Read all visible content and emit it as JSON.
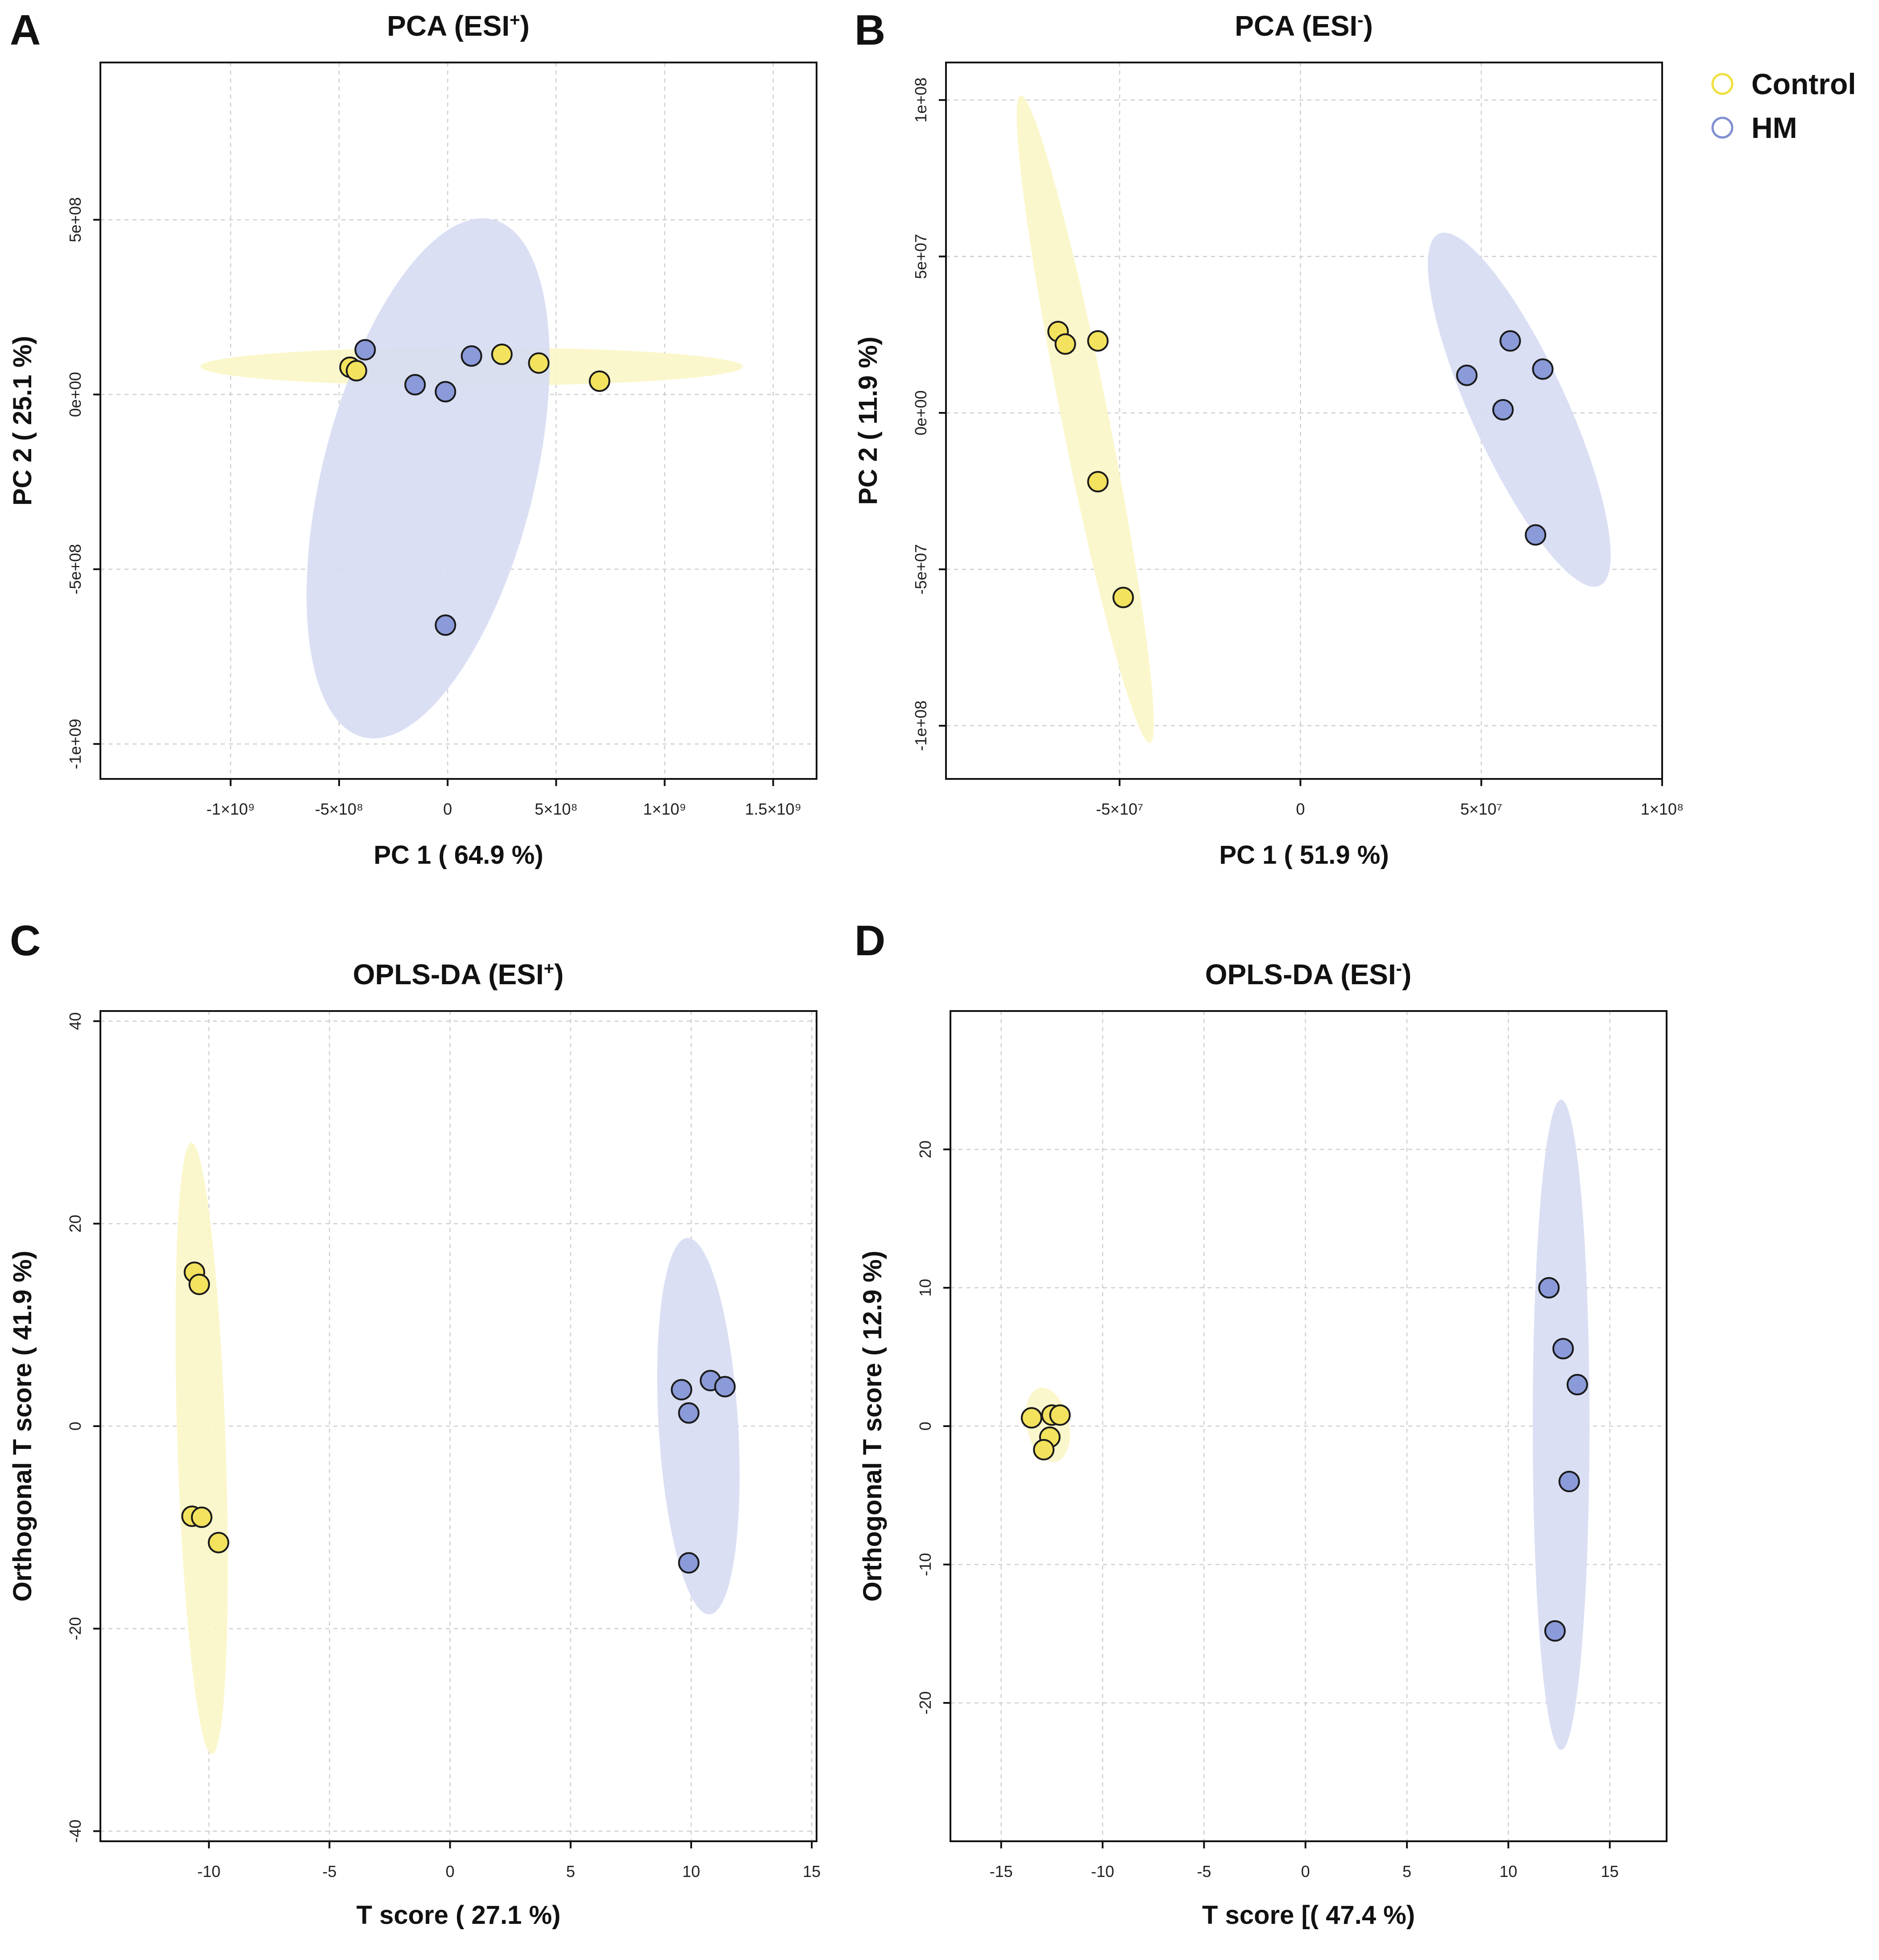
{
  "colors": {
    "Control": "#f2e25e",
    "HM": "#8b9ad8",
    "Control_ellipse": "#fbf6c6",
    "HM_ellipse": "#d6dbf3",
    "legend_Control": "#f0e040",
    "legend_HM": "#8090d0"
  },
  "legend": {
    "items": [
      {
        "name": "Control",
        "label": "Control"
      },
      {
        "name": "HM",
        "label": "HM"
      }
    ]
  },
  "chart_data": [
    {
      "id": "A",
      "letter": "A",
      "type": "scatter",
      "title": "PCA (ESI",
      "title_sup": "+",
      "title_close": ")",
      "xlabel": "PC 1 ( 64.9 %)",
      "ylabel": "PC 2 ( 25.1 %)",
      "xlim": [
        -1600000000.0,
        1700000000.0
      ],
      "ylim": [
        -1100000000.0,
        950000000.0
      ],
      "xticks": [
        {
          "value": -1000000000.0,
          "label": "-1×10⁹"
        },
        {
          "value": -500000000.0,
          "label": "-5×10⁸"
        },
        {
          "value": 0,
          "label": "0"
        },
        {
          "value": 500000000.0,
          "label": "5×10⁸"
        },
        {
          "value": 1000000000.0,
          "label": "1×10⁹"
        },
        {
          "value": 1500000000.0,
          "label": "1.5×10⁹"
        }
      ],
      "yticks": [
        {
          "value": -1000000000.0,
          "label": "-1e+09"
        },
        {
          "value": -500000000.0,
          "label": "-5e+08"
        },
        {
          "value": 0,
          "label": "0e+00"
        },
        {
          "value": 500000000.0,
          "label": "5e+08"
        }
      ],
      "ellipses": [
        {
          "group": "Control",
          "cx": 110000000.0,
          "cy": 80000000.0,
          "rx": 1250000000.0,
          "ry": 55000000.0,
          "rotation": 0
        },
        {
          "group": "HM",
          "cx": -90000000.0,
          "cy": -240000000.0,
          "rx": 460000000.0,
          "ry": 810000000.0,
          "rotation": -0.5
        }
      ],
      "series": [
        {
          "name": "Control",
          "x": [
            -450000000.0,
            -420000000.0,
            250000000.0,
            420000000.0,
            700000000.0
          ],
          "y": [
            78000000.0,
            68000000.0,
            115000000.0,
            90000000.0,
            38000000.0
          ]
        },
        {
          "name": "HM",
          "x": [
            -380000000.0,
            -150000000.0,
            -10000000.0,
            110000000.0,
            -10000000.0
          ],
          "y": [
            128000000.0,
            28000000.0,
            8000000.0,
            110000000.0,
            -660000000.0
          ]
        }
      ]
    },
    {
      "id": "B",
      "letter": "B",
      "type": "scatter",
      "title": "PCA (ESI",
      "title_sup": "-",
      "title_close": ")",
      "xlabel": "PC 1 ( 51.9 %)",
      "ylabel": "PC 2 ( 11.9 %)",
      "xlim": [
        -98000000.0,
        100000000.0
      ],
      "ylim": [
        -117000000.0,
        112000000.0
      ],
      "xticks": [
        {
          "value": -50000000.0,
          "label": "-5×10⁷"
        },
        {
          "value": 0,
          "label": "0"
        },
        {
          "value": 50000000.0,
          "label": "5×10⁷"
        },
        {
          "value": 100000000.0,
          "label": "1×10⁸"
        }
      ],
      "yticks": [
        {
          "value": -100000000.0,
          "label": "-1e+08"
        },
        {
          "value": -50000000.0,
          "label": "-5e+07"
        },
        {
          "value": 0,
          "label": "0e+00"
        },
        {
          "value": 50000000.0,
          "label": "5e+07"
        },
        {
          "value": 100000000.0,
          "label": "1e+08"
        }
      ],
      "ellipses": [
        {
          "group": "Control",
          "cx": -59500000.0,
          "cy": -2000000.0,
          "rx": 105000000.0,
          "ry": 6500000.0,
          "rotation": -1.4
        },
        {
          "group": "HM",
          "cx": 60500000.0,
          "cy": 1000000.0,
          "rx": 60500000.0,
          "ry": 13500000.0,
          "rotation": -1.2
        }
      ],
      "series": [
        {
          "name": "Control",
          "x": [
            -67000000.0,
            -65000000.0,
            -56000000.0,
            -56000000.0,
            -49000000.0
          ],
          "y": [
            26000000.0,
            22000000.0,
            23000000.0,
            -22000000.0,
            -59000000.0
          ]
        },
        {
          "name": "HM",
          "x": [
            46000000.0,
            58000000.0,
            67000000.0,
            56000000.0,
            65000000.0
          ],
          "y": [
            12000000.0,
            23000000.0,
            14000000.0,
            1000000.0,
            -39000000.0
          ]
        }
      ]
    },
    {
      "id": "C",
      "letter": "C",
      "type": "scatter",
      "title": "OPLS-DA (ESI",
      "title_sup": "+",
      "title_close": ")",
      "xlabel": "T score ( 27.1 %)",
      "ylabel": "Orthogonal T score ( 41.9 %)",
      "xlim": [
        -14.5,
        15.2
      ],
      "ylim": [
        -41,
        41
      ],
      "xticks": [
        {
          "value": -10,
          "label": "-10"
        },
        {
          "value": -5,
          "label": "-5"
        },
        {
          "value": 0,
          "label": "0"
        },
        {
          "value": 5,
          "label": "5"
        },
        {
          "value": 10,
          "label": "10"
        },
        {
          "value": 15,
          "label": "15"
        }
      ],
      "yticks": [
        {
          "value": -40,
          "label": "-40"
        },
        {
          "value": -20,
          "label": "-20"
        },
        {
          "value": 0,
          "label": "0"
        },
        {
          "value": 20,
          "label": "20"
        },
        {
          "value": 40,
          "label": "40"
        }
      ],
      "ellipses": [
        {
          "group": "Control",
          "cx": -10.3,
          "cy": -2.2,
          "rx": 30.2,
          "ry": 1.0,
          "rotation": -1.5568
        },
        {
          "group": "HM",
          "cx": 10.3,
          "cy": 0,
          "rx": 18.6,
          "ry": 1.65,
          "rotation": -1.5468
        }
      ],
      "series": [
        {
          "name": "Control",
          "x": [
            -10.6,
            -10.4,
            -10.7,
            -10.3,
            -9.6
          ],
          "y": [
            15.2,
            14.0,
            -8.9,
            -9.0,
            -11.5
          ]
        },
        {
          "name": "HM",
          "x": [
            9.6,
            10.8,
            11.4,
            9.9,
            9.9
          ],
          "y": [
            3.6,
            4.5,
            3.9,
            1.3,
            -13.5
          ]
        }
      ]
    },
    {
      "id": "D",
      "letter": "D",
      "type": "scatter",
      "title": "OPLS-DA (ESI",
      "title_sup": "-",
      "title_close": ")",
      "xlabel": "T score [( 47.4 %)",
      "ylabel": "Orthogonal T score ( 12.9 %)",
      "xlim": [
        -17.5,
        17.8
      ],
      "ylim": [
        -30,
        30
      ],
      "xticks": [
        {
          "value": -15,
          "label": "-15"
        },
        {
          "value": -10,
          "label": "-10"
        },
        {
          "value": -5,
          "label": "-5"
        },
        {
          "value": 0,
          "label": "0"
        },
        {
          "value": 5,
          "label": "5"
        },
        {
          "value": 10,
          "label": "10"
        },
        {
          "value": 15,
          "label": "15"
        }
      ],
      "yticks": [
        {
          "value": -20,
          "label": "-20"
        },
        {
          "value": -10,
          "label": "-10"
        },
        {
          "value": 0,
          "label": "0"
        },
        {
          "value": 10,
          "label": "10"
        },
        {
          "value": 20,
          "label": "20"
        }
      ],
      "ellipses": [
        {
          "group": "Control",
          "cx": -12.7,
          "cy": 0.1,
          "rx": 2.7,
          "ry": 1.05,
          "rotation": -1.45
        },
        {
          "group": "HM",
          "cx": 12.6,
          "cy": 0.1,
          "rx": 23.5,
          "ry": 1.4,
          "rotation": -1.5708
        }
      ],
      "series": [
        {
          "name": "Control",
          "x": [
            -13.5,
            -12.5,
            -12.1,
            -12.6,
            -12.9
          ],
          "y": [
            0.6,
            0.8,
            0.8,
            -0.8,
            -1.7
          ]
        },
        {
          "name": "HM",
          "x": [
            12.0,
            12.7,
            13.4,
            13.0,
            12.3
          ],
          "y": [
            10.0,
            5.6,
            3.0,
            -4.0,
            -14.8
          ]
        }
      ]
    }
  ]
}
